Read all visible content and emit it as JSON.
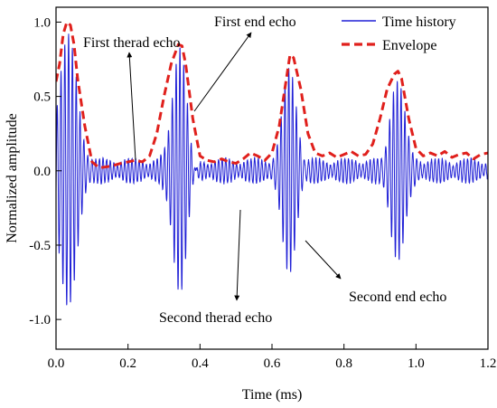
{
  "chart_data": {
    "type": "line",
    "xlabel": "Time (ms)",
    "ylabel": "Normalized amplitude",
    "xlim": [
      0.0,
      1.2
    ],
    "ylim": [
      -1.2,
      1.1
    ],
    "xticks": [
      "0.0",
      "0.2",
      "0.4",
      "0.6",
      "0.8",
      "1.0",
      "1.2"
    ],
    "yticks": [
      "-1.0",
      "-0.5",
      "0.0",
      "0.5",
      "1.0"
    ],
    "grid": false,
    "legend_position": "top-right",
    "colors": {
      "time_history": "#1f1fd6",
      "envelope": "#e0201c"
    },
    "series": [
      {
        "name": "Time history",
        "style": "solid",
        "signal": {
          "carrier_frequency_khz": 95,
          "echoes": [
            {
              "center_ms": 0.035,
              "peak": 1.0,
              "sigma_ms": 0.025
            },
            {
              "center_ms": 0.345,
              "peak": 0.85,
              "sigma_ms": 0.02
            },
            {
              "center_ms": 0.648,
              "peak": 0.78,
              "sigma_ms": 0.02
            },
            {
              "center_ms": 0.95,
              "peak": 0.67,
              "sigma_ms": 0.022
            }
          ],
          "noise_amplitude": 0.06
        }
      },
      {
        "name": "Envelope",
        "style": "dashed",
        "x": [
          0.0,
          0.01,
          0.02,
          0.03,
          0.04,
          0.05,
          0.06,
          0.08,
          0.1,
          0.12,
          0.15,
          0.18,
          0.2,
          0.22,
          0.24,
          0.26,
          0.28,
          0.3,
          0.32,
          0.34,
          0.35,
          0.36,
          0.38,
          0.4,
          0.42,
          0.44,
          0.46,
          0.48,
          0.5,
          0.52,
          0.54,
          0.56,
          0.58,
          0.6,
          0.62,
          0.64,
          0.65,
          0.66,
          0.68,
          0.7,
          0.72,
          0.74,
          0.76,
          0.78,
          0.8,
          0.82,
          0.84,
          0.86,
          0.88,
          0.9,
          0.92,
          0.94,
          0.95,
          0.96,
          0.98,
          1.0,
          1.02,
          1.04,
          1.06,
          1.08,
          1.1,
          1.12,
          1.14,
          1.16,
          1.18,
          1.2
        ],
        "y": [
          0.6,
          0.72,
          0.92,
          1.0,
          0.98,
          0.85,
          0.62,
          0.3,
          0.06,
          0.02,
          0.03,
          0.05,
          0.06,
          0.07,
          0.06,
          0.1,
          0.25,
          0.5,
          0.72,
          0.85,
          0.84,
          0.72,
          0.35,
          0.1,
          0.07,
          0.06,
          0.08,
          0.06,
          0.05,
          0.08,
          0.12,
          0.1,
          0.07,
          0.12,
          0.3,
          0.62,
          0.78,
          0.76,
          0.55,
          0.25,
          0.12,
          0.1,
          0.12,
          0.09,
          0.11,
          0.13,
          0.1,
          0.11,
          0.18,
          0.35,
          0.55,
          0.65,
          0.67,
          0.62,
          0.35,
          0.15,
          0.1,
          0.12,
          0.1,
          0.13,
          0.09,
          0.11,
          0.12,
          0.08,
          0.11,
          0.12
        ]
      }
    ],
    "annotations": [
      {
        "text": "First therad echo",
        "target": [
          0.22,
          0.05
        ]
      },
      {
        "text": "First end echo",
        "target": [
          0.38,
          0.55
        ]
      },
      {
        "text": "Second therad echo",
        "target": [
          0.52,
          -0.2
        ]
      },
      {
        "text": "Second end echo",
        "target": [
          0.72,
          -0.4
        ]
      }
    ]
  }
}
